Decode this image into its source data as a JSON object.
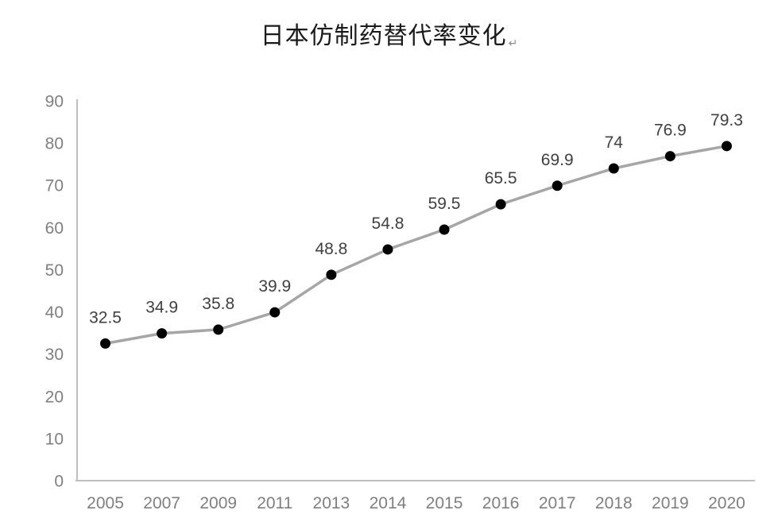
{
  "title_mark": "↵",
  "chart_data": {
    "type": "line",
    "title": "日本仿制药替代率变化",
    "categories": [
      "2005",
      "2007",
      "2009",
      "2011",
      "2013",
      "2014",
      "2015",
      "2016",
      "2017",
      "2018",
      "2019",
      "2020"
    ],
    "values": [
      32.5,
      34.9,
      35.8,
      39.9,
      48.8,
      54.8,
      59.5,
      65.5,
      69.9,
      74,
      76.9,
      79.3
    ],
    "data_labels": [
      "32.5",
      "34.9",
      "35.8",
      "39.9",
      "48.8",
      "54.8",
      "59.5",
      "65.5",
      "69.9",
      "74",
      "76.9",
      "79.3"
    ],
    "xlabel": "",
    "ylabel": "",
    "ylim": [
      0,
      90
    ],
    "yticks": [
      0,
      10,
      20,
      30,
      40,
      50,
      60,
      70,
      80,
      90
    ],
    "grid": false,
    "legend": false,
    "data_labels_position": "above",
    "colors": {
      "line": "#a6a6a6",
      "marker": "#000000",
      "data_label": "#404040",
      "tick_label": "#7f7f7f",
      "axis": "#bfbfbf",
      "title": "#1a1a1a",
      "background": "#ffffff"
    }
  }
}
